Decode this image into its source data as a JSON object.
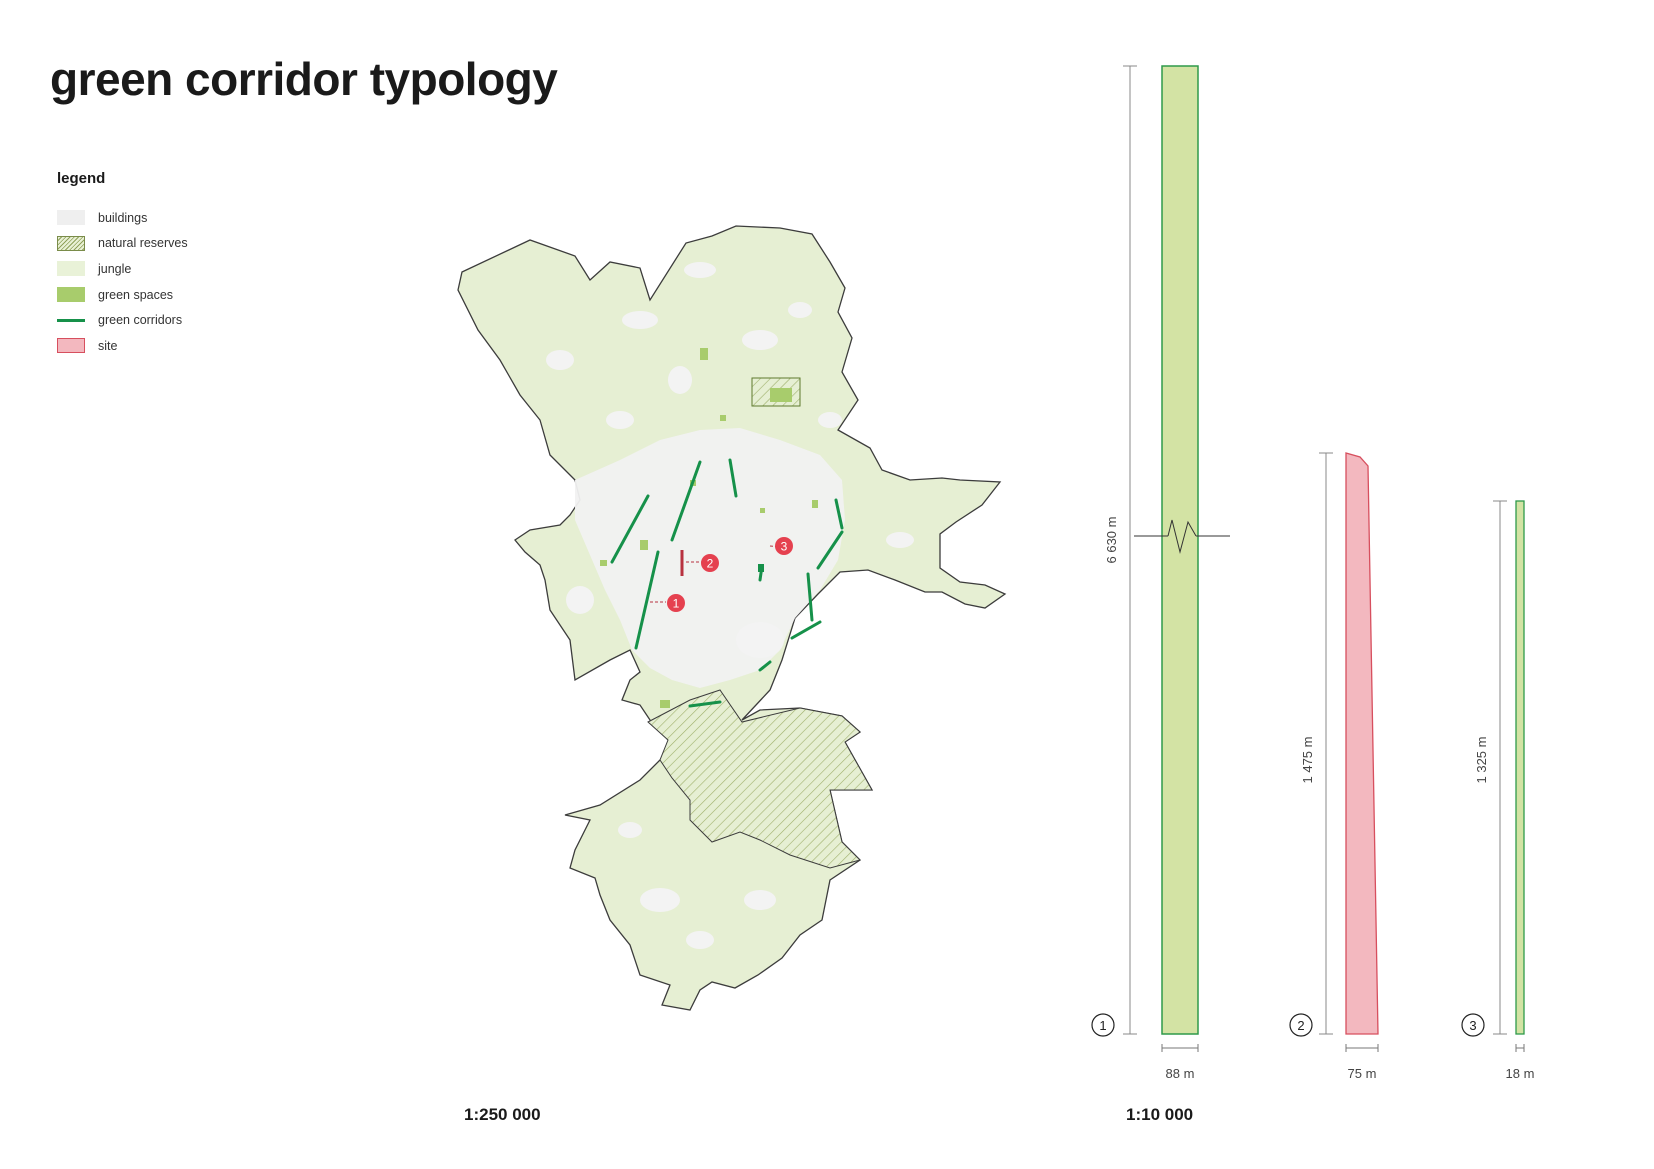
{
  "title": "green corridor typology",
  "legend": {
    "title": "legend",
    "items": [
      {
        "label": "buildings",
        "swatch": "buildings",
        "color": "#efefef"
      },
      {
        "label": "natural reserves",
        "swatch": "reserves",
        "color": "#8fa05a"
      },
      {
        "label": "jungle",
        "swatch": "jungle",
        "color": "#e9f2d8"
      },
      {
        "label": "green spaces",
        "swatch": "green",
        "color": "#a8cc6c"
      },
      {
        "label": "green corridors",
        "swatch": "corridor",
        "color": "#16914a"
      },
      {
        "label": "site",
        "swatch": "site",
        "color": "#f3b8bf"
      }
    ]
  },
  "map": {
    "scale": "1:250 000",
    "markers": [
      "1",
      "2",
      "3"
    ],
    "colors": {
      "jungle": "#e6efd3",
      "buildings": "#efefef",
      "green_spaces": "#a8cc6c",
      "corridor": "#16914a",
      "marker": "#e5414f",
      "site": "#b8323f"
    }
  },
  "profiles": {
    "scale": "1:10 000",
    "items": [
      {
        "number": "1",
        "length": "6 630 m",
        "width": "88 m",
        "fill": "#d3e3a4",
        "stroke": "#2e9a4a"
      },
      {
        "number": "2",
        "length": "1 475 m",
        "width": "75 m",
        "fill": "#f3b8bf",
        "stroke": "#d74f5e"
      },
      {
        "number": "3",
        "length": "1 325 m",
        "width": "18 m",
        "fill": "#d3e3a4",
        "stroke": "#2e9a4a"
      }
    ]
  }
}
